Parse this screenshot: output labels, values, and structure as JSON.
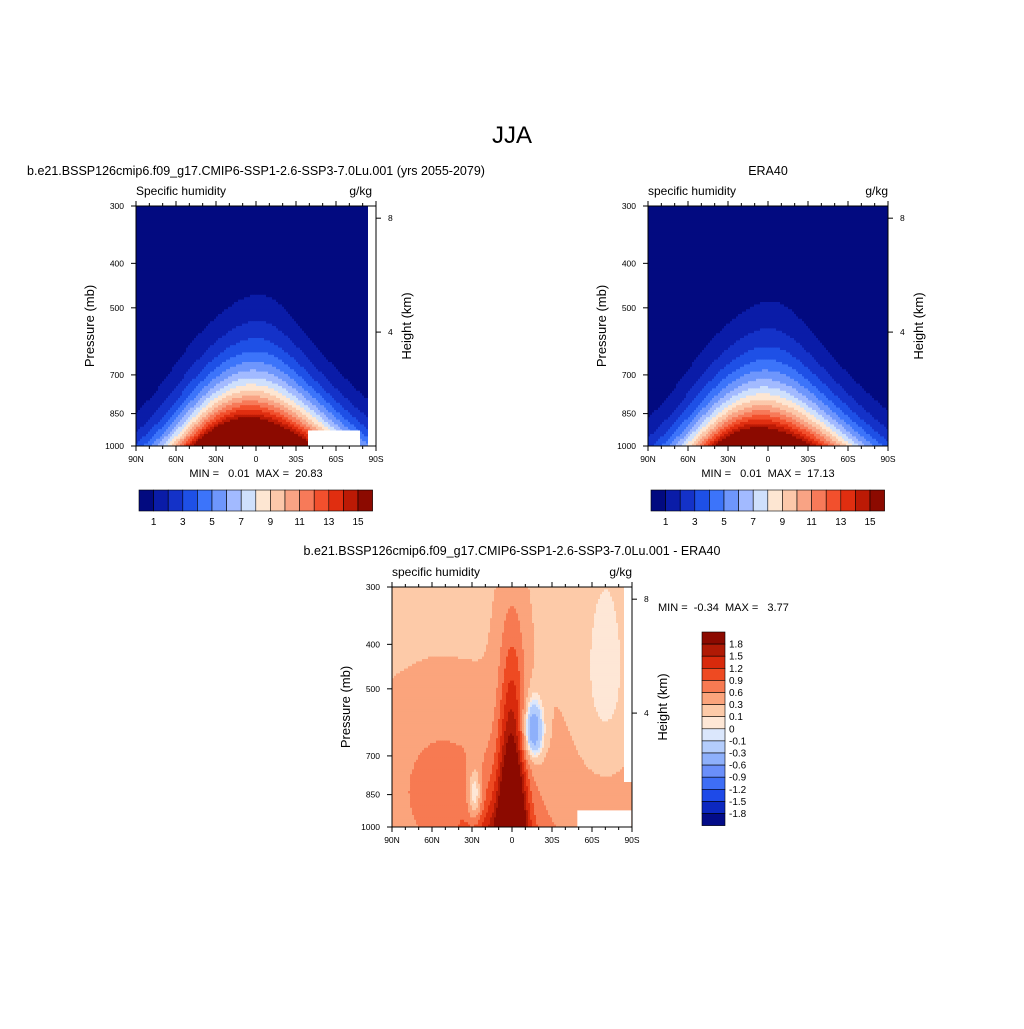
{
  "page": {
    "title": "JJA"
  },
  "panels": [
    {
      "title": "b.e21.BSSP126cmip6.f09_g17.CMIP6-SSP1-2.6-SSP3-7.0Lu.001 (yrs 2055-2079)",
      "left_label": "Specific humidity",
      "right_label": "g/kg",
      "ylabel": "Pressure (mb)",
      "ylabel_right": "Height (km)",
      "stats": "MIN =   0.01  MAX =  20.83"
    },
    {
      "title": "ERA40",
      "left_label": "specific humidity",
      "right_label": "g/kg",
      "ylabel": "Pressure (mb)",
      "ylabel_right": "Height (km)",
      "stats": "MIN =   0.01  MAX =  17.13"
    },
    {
      "title": "b.e21.BSSP126cmip6.f09_g17.CMIP6-SSP1-2.6-SSP3-7.0Lu.001 - ERA40",
      "left_label": "specific humidity",
      "right_label": "g/kg",
      "ylabel": "Pressure (mb)",
      "ylabel_right": "Height (km)",
      "stats": "MIN =  -0.34  MAX =   3.77"
    }
  ],
  "chart_data": [
    {
      "type": "heatmap",
      "title": "b.e21.BSSP126cmip6.f09_g17.CMIP6-SSP1-2.6-SSP3-7.0Lu.001 (yrs 2055-2079)",
      "variable": "Specific humidity",
      "units": "g/kg",
      "xlabel": "",
      "ylabel": "Pressure (mb)",
      "ylabel_right": "Height (km)",
      "x_tick_labels": [
        "90N",
        "60N",
        "30N",
        "0",
        "30S",
        "60S",
        "90S"
      ],
      "x_ticks": [
        90,
        60,
        30,
        0,
        -30,
        -60,
        -90
      ],
      "xlim": [
        90,
        -90
      ],
      "y_ticks": [
        300,
        400,
        500,
        700,
        850,
        1000
      ],
      "ylim": [
        1000,
        300
      ],
      "y_scale": "log",
      "right_ticks": [
        4,
        8
      ],
      "min": 0.01,
      "max": 20.83,
      "colorbar": {
        "orientation": "horizontal",
        "labels": [
          "1",
          "3",
          "5",
          "7",
          "9",
          "11",
          "13",
          "15"
        ],
        "levels": [
          0,
          1,
          2,
          3,
          4,
          5,
          6,
          7,
          8,
          9,
          10,
          11,
          12,
          13,
          14,
          15,
          16
        ]
      },
      "peak_lat": -5
    },
    {
      "type": "heatmap",
      "title": "ERA40",
      "variable": "specific humidity",
      "units": "g/kg",
      "xlabel": "",
      "ylabel": "Pressure (mb)",
      "ylabel_right": "Height (km)",
      "x_tick_labels": [
        "90N",
        "60N",
        "30N",
        "0",
        "30S",
        "60S",
        "90S"
      ],
      "x_ticks": [
        90,
        60,
        30,
        0,
        -30,
        -60,
        -90
      ],
      "xlim": [
        90,
        -90
      ],
      "y_ticks": [
        300,
        400,
        500,
        700,
        850,
        1000
      ],
      "ylim": [
        1000,
        300
      ],
      "y_scale": "log",
      "right_ticks": [
        4,
        8
      ],
      "min": 0.01,
      "max": 17.13,
      "colorbar": {
        "orientation": "horizontal",
        "labels": [
          "1",
          "3",
          "5",
          "7",
          "9",
          "11",
          "13",
          "15"
        ],
        "levels": [
          0,
          1,
          2,
          3,
          4,
          5,
          6,
          7,
          8,
          9,
          10,
          11,
          12,
          13,
          14,
          15,
          16
        ]
      },
      "peak_lat": -5
    },
    {
      "type": "heatmap",
      "title": "b.e21.BSSP126cmip6.f09_g17.CMIP6-SSP1-2.6-SSP3-7.0Lu.001 - ERA40",
      "variable": "specific humidity",
      "units": "g/kg",
      "xlabel": "",
      "ylabel": "Pressure (mb)",
      "ylabel_right": "Height (km)",
      "x_tick_labels": [
        "90N",
        "60N",
        "30N",
        "0",
        "30S",
        "60S",
        "90S"
      ],
      "x_ticks": [
        90,
        60,
        30,
        0,
        -30,
        -60,
        -90
      ],
      "xlim": [
        90,
        -90
      ],
      "y_ticks": [
        300,
        400,
        500,
        700,
        850,
        1000
      ],
      "ylim": [
        1000,
        300
      ],
      "y_scale": "log",
      "right_ticks": [
        4,
        8
      ],
      "min": -0.34,
      "max": 3.77,
      "colorbar": {
        "orientation": "vertical",
        "labels": [
          "1.8",
          "1.5",
          "1.2",
          "0.9",
          "0.6",
          "0.3",
          "0.1",
          "0",
          "-0.1",
          "-0.3",
          "-0.6",
          "-0.9",
          "-1.2",
          "-1.5",
          "-1.8"
        ]
      }
    }
  ],
  "colors": {
    "seq": [
      "#020a80",
      "#0a1ca8",
      "#1432c8",
      "#1e50e6",
      "#3c74fa",
      "#6e96fc",
      "#a2baff",
      "#cfe0fc",
      "#fde6d2",
      "#fcc8aa",
      "#f9a384",
      "#f77a59",
      "#f2502d",
      "#e02e10",
      "#bc1a05",
      "#8c0a00"
    ],
    "div": [
      "#8c0a00",
      "#b01a05",
      "#d82a0c",
      "#ee4a22",
      "#f77a52",
      "#fba47c",
      "#fdcaa8",
      "#fee7d6",
      "#dbe7fc",
      "#b4cdfc",
      "#8eb0fb",
      "#6a8ffa",
      "#3e6ef6",
      "#1e4ae8",
      "#0c28c0",
      "#030c88"
    ]
  }
}
